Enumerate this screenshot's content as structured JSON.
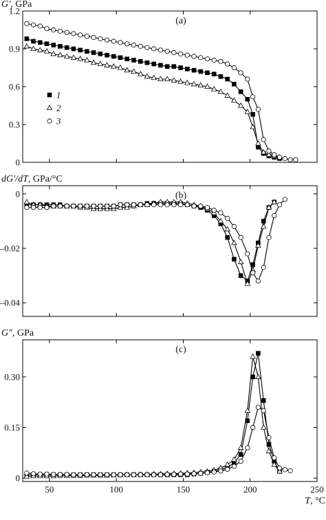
{
  "chart_data": [
    {
      "type": "line",
      "panel_label": "(a)",
      "ylabel_symbol": "G′",
      "ylabel_unit": ", GPa",
      "xlim": [
        30,
        250
      ],
      "ylim": [
        0,
        1.2
      ],
      "xticks": [
        50,
        100,
        150,
        200,
        250
      ],
      "yticks": [
        0,
        0.3,
        0.6,
        0.9,
        1.2
      ],
      "ytick_labels": [
        "0",
        "0.3",
        "0.6",
        "0.9",
        "1.2"
      ],
      "legend": {
        "placement": "left",
        "entries": [
          "1",
          "2",
          "3"
        ]
      },
      "series": [
        {
          "name": "1",
          "marker": "square-filled",
          "x": [
            33,
            38,
            43,
            48,
            53,
            58,
            63,
            68,
            73,
            78,
            83,
            88,
            93,
            98,
            103,
            108,
            113,
            118,
            123,
            128,
            133,
            138,
            143,
            148,
            153,
            158,
            163,
            168,
            173,
            178,
            183,
            188,
            193,
            198,
            202,
            206,
            210,
            214,
            218,
            222
          ],
          "y": [
            0.98,
            0.96,
            0.95,
            0.94,
            0.93,
            0.92,
            0.91,
            0.9,
            0.89,
            0.88,
            0.87,
            0.86,
            0.85,
            0.84,
            0.83,
            0.82,
            0.81,
            0.8,
            0.79,
            0.78,
            0.77,
            0.76,
            0.76,
            0.75,
            0.74,
            0.73,
            0.72,
            0.71,
            0.7,
            0.68,
            0.66,
            0.62,
            0.56,
            0.5,
            0.38,
            0.12,
            0.07,
            0.05,
            0.04,
            0.03
          ]
        },
        {
          "name": "2",
          "marker": "triangle-open",
          "x": [
            33,
            38,
            43,
            48,
            53,
            58,
            63,
            68,
            73,
            78,
            83,
            88,
            93,
            98,
            103,
            108,
            113,
            118,
            123,
            128,
            133,
            138,
            143,
            148,
            153,
            158,
            163,
            168,
            173,
            178,
            183,
            188,
            193,
            198,
            202,
            206,
            210,
            214,
            218,
            222
          ],
          "y": [
            0.92,
            0.9,
            0.89,
            0.88,
            0.86,
            0.85,
            0.84,
            0.83,
            0.82,
            0.81,
            0.79,
            0.78,
            0.77,
            0.76,
            0.75,
            0.73,
            0.72,
            0.7,
            0.68,
            0.67,
            0.66,
            0.66,
            0.65,
            0.64,
            0.63,
            0.62,
            0.61,
            0.6,
            0.58,
            0.56,
            0.53,
            0.49,
            0.45,
            0.4,
            0.28,
            0.15,
            0.08,
            0.06,
            0.05,
            0.04
          ]
        },
        {
          "name": "3",
          "marker": "circle-open",
          "x": [
            33,
            38,
            43,
            48,
            53,
            58,
            63,
            68,
            73,
            78,
            83,
            88,
            93,
            98,
            103,
            108,
            113,
            118,
            123,
            128,
            133,
            138,
            143,
            148,
            153,
            158,
            163,
            168,
            173,
            178,
            183,
            188,
            193,
            198,
            202,
            206,
            210,
            214,
            218,
            222,
            226,
            230,
            234
          ],
          "y": [
            1.1,
            1.09,
            1.08,
            1.06,
            1.05,
            1.04,
            1.03,
            1.02,
            1.01,
            1,
            0.99,
            0.98,
            0.97,
            0.96,
            0.95,
            0.94,
            0.93,
            0.92,
            0.91,
            0.9,
            0.89,
            0.88,
            0.87,
            0.86,
            0.85,
            0.84,
            0.83,
            0.82,
            0.81,
            0.8,
            0.78,
            0.75,
            0.71,
            0.66,
            0.52,
            0.42,
            0.18,
            0.09,
            0.06,
            0.04,
            0.03,
            0.02,
            0.02
          ]
        }
      ]
    },
    {
      "type": "line",
      "panel_label": "(b)",
      "ylabel_symbol": "dG′/dT",
      "ylabel_unit": ", GPa/°C",
      "xlim": [
        30,
        250
      ],
      "ylim": [
        -0.045,
        0.003
      ],
      "xticks": [
        50,
        100,
        150,
        200,
        250
      ],
      "yticks": [
        0,
        -0.02,
        -0.04
      ],
      "ytick_labels": [
        "0",
        "–0.02",
        "–0.04"
      ],
      "series": [
        {
          "name": "1",
          "marker": "square-filled",
          "x": [
            33,
            38,
            43,
            48,
            53,
            58,
            63,
            68,
            73,
            78,
            83,
            88,
            93,
            98,
            103,
            108,
            113,
            118,
            123,
            128,
            133,
            138,
            143,
            148,
            153,
            158,
            163,
            168,
            173,
            178,
            183,
            188,
            193,
            198,
            202,
            206,
            210,
            214,
            218
          ],
          "y": [
            -0.004,
            -0.004,
            -0.004,
            -0.004,
            -0.004,
            -0.004,
            -0.0045,
            -0.0045,
            -0.0045,
            -0.0045,
            -0.0045,
            -0.0045,
            -0.0045,
            -0.0045,
            -0.004,
            -0.004,
            -0.004,
            -0.004,
            -0.0035,
            -0.0035,
            -0.0035,
            -0.0035,
            -0.0035,
            -0.0035,
            -0.004,
            -0.0045,
            -0.005,
            -0.006,
            -0.008,
            -0.011,
            -0.016,
            -0.024,
            -0.03,
            -0.032,
            -0.026,
            -0.018,
            -0.01,
            -0.005,
            -0.003
          ]
        },
        {
          "name": "2",
          "marker": "triangle-open",
          "x": [
            33,
            38,
            43,
            48,
            53,
            58,
            63,
            68,
            73,
            78,
            83,
            88,
            93,
            98,
            103,
            108,
            113,
            118,
            123,
            128,
            133,
            138,
            143,
            148,
            153,
            158,
            163,
            168,
            173,
            178,
            183,
            188,
            193,
            198,
            202,
            206,
            210,
            214,
            218
          ],
          "y": [
            -0.003,
            -0.004,
            -0.004,
            -0.0045,
            -0.0045,
            -0.0045,
            -0.0045,
            -0.0045,
            -0.005,
            -0.005,
            -0.0055,
            -0.0055,
            -0.0055,
            -0.0055,
            -0.005,
            -0.005,
            -0.0045,
            -0.004,
            -0.004,
            -0.0035,
            -0.003,
            -0.003,
            -0.003,
            -0.003,
            -0.0035,
            -0.004,
            -0.0045,
            -0.0055,
            -0.007,
            -0.01,
            -0.013,
            -0.018,
            -0.025,
            -0.033,
            -0.028,
            -0.019,
            -0.012,
            -0.005,
            -0.003
          ]
        },
        {
          "name": "3",
          "marker": "circle-open",
          "x": [
            33,
            38,
            43,
            48,
            53,
            58,
            63,
            68,
            73,
            78,
            83,
            88,
            93,
            98,
            103,
            108,
            113,
            118,
            123,
            128,
            133,
            138,
            143,
            148,
            153,
            158,
            163,
            168,
            173,
            178,
            183,
            188,
            193,
            198,
            202,
            206,
            210,
            214,
            218,
            222,
            226
          ],
          "y": [
            -0.005,
            -0.005,
            -0.005,
            -0.005,
            -0.0045,
            -0.0045,
            -0.0045,
            -0.0045,
            -0.0045,
            -0.0045,
            -0.0045,
            -0.0045,
            -0.0045,
            -0.0045,
            -0.004,
            -0.004,
            -0.004,
            -0.004,
            -0.004,
            -0.004,
            -0.004,
            -0.004,
            -0.004,
            -0.004,
            -0.004,
            -0.0045,
            -0.0045,
            -0.005,
            -0.006,
            -0.007,
            -0.009,
            -0.012,
            -0.016,
            -0.022,
            -0.029,
            -0.032,
            -0.027,
            -0.016,
            -0.008,
            -0.004,
            -0.002
          ]
        }
      ]
    },
    {
      "type": "line",
      "panel_label": "(c)",
      "ylabel_symbol": "G″",
      "ylabel_unit": ", GPa",
      "xlabel_symbol": "T",
      "xlabel_unit": ", °C",
      "xlim": [
        30,
        250
      ],
      "ylim": [
        -0.01,
        0.41
      ],
      "xticks": [
        50,
        100,
        150,
        200,
        250
      ],
      "xtick_labels": [
        "50",
        "100",
        "150",
        "200",
        "250"
      ],
      "yticks": [
        0,
        0.15,
        0.3
      ],
      "ytick_labels": [
        "0",
        "0.15",
        "0.30"
      ],
      "series": [
        {
          "name": "1",
          "marker": "square-filled",
          "x": [
            33,
            38,
            43,
            48,
            53,
            58,
            63,
            68,
            73,
            78,
            83,
            88,
            93,
            98,
            103,
            108,
            113,
            118,
            123,
            128,
            133,
            138,
            143,
            148,
            153,
            158,
            163,
            168,
            173,
            178,
            183,
            188,
            193,
            198,
            202,
            206,
            210,
            214,
            218,
            222
          ],
          "y": [
            0.01,
            0.01,
            0.01,
            0.01,
            0.01,
            0.01,
            0.01,
            0.01,
            0.01,
            0.01,
            0.01,
            0.01,
            0.01,
            0.01,
            0.01,
            0.01,
            0.01,
            0.01,
            0.01,
            0.01,
            0.01,
            0.01,
            0.01,
            0.01,
            0.01,
            0.012,
            0.014,
            0.017,
            0.02,
            0.025,
            0.032,
            0.045,
            0.07,
            0.17,
            0.3,
            0.37,
            0.23,
            0.1,
            0.05,
            0.02
          ]
        },
        {
          "name": "2",
          "marker": "triangle-open",
          "x": [
            33,
            38,
            43,
            48,
            53,
            58,
            63,
            68,
            73,
            78,
            83,
            88,
            93,
            98,
            103,
            108,
            113,
            118,
            123,
            128,
            133,
            138,
            143,
            148,
            153,
            158,
            163,
            168,
            173,
            178,
            183,
            188,
            193,
            198,
            202,
            206,
            210,
            214,
            218,
            222
          ],
          "y": [
            0.005,
            0.006,
            0.006,
            0.006,
            0.006,
            0.007,
            0.007,
            0.007,
            0.007,
            0.008,
            0.008,
            0.008,
            0.008,
            0.009,
            0.009,
            0.01,
            0.01,
            0.011,
            0.011,
            0.012,
            0.012,
            0.013,
            0.013,
            0.014,
            0.015,
            0.016,
            0.018,
            0.02,
            0.024,
            0.03,
            0.04,
            0.055,
            0.09,
            0.2,
            0.36,
            0.3,
            0.15,
            0.08,
            0.04,
            0.02
          ]
        },
        {
          "name": "3",
          "marker": "circle-open",
          "x": [
            33,
            38,
            43,
            48,
            53,
            58,
            63,
            68,
            73,
            78,
            83,
            88,
            93,
            98,
            103,
            108,
            113,
            118,
            123,
            128,
            133,
            138,
            143,
            148,
            153,
            158,
            163,
            168,
            173,
            178,
            183,
            188,
            193,
            198,
            202,
            206,
            210,
            214,
            218,
            222,
            226,
            230
          ],
          "y": [
            0.015,
            0.013,
            0.012,
            0.012,
            0.011,
            0.011,
            0.011,
            0.01,
            0.01,
            0.01,
            0.01,
            0.01,
            0.01,
            0.01,
            0.01,
            0.01,
            0.01,
            0.01,
            0.01,
            0.01,
            0.01,
            0.011,
            0.011,
            0.012,
            0.012,
            0.013,
            0.014,
            0.016,
            0.018,
            0.021,
            0.026,
            0.035,
            0.05,
            0.09,
            0.15,
            0.21,
            0.2,
            0.12,
            0.06,
            0.03,
            0.025,
            0.022
          ]
        }
      ]
    }
  ]
}
